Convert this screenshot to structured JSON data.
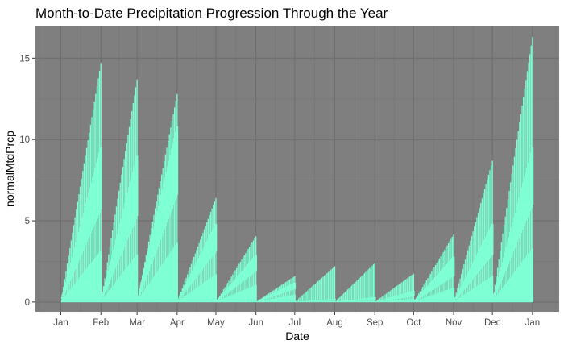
{
  "chart_data": {
    "type": "area",
    "title": "Month-to-Date Precipitation Progression Through the Year",
    "xlabel": "Date",
    "ylabel": "normalMtdPrcp",
    "ylim": [
      -0.6,
      17.0
    ],
    "x_tick_labels": [
      "Jan",
      "Feb",
      "Mar",
      "Apr",
      "May",
      "Jun",
      "Jul",
      "Aug",
      "Sep",
      "Oct",
      "Nov",
      "Dec",
      "Jan"
    ],
    "y_ticks": [
      0,
      5,
      10,
      15
    ],
    "y_tick_labels": [
      "0",
      "5",
      "10",
      "15"
    ],
    "grid": true,
    "panel_background": "#7f7f7f",
    "series_color": "#7fffd4",
    "months": [
      {
        "name": "Jan",
        "days": 31,
        "end_max": 14.7,
        "end_upper_mid": 9.5,
        "end_lower_mid": 5.7,
        "end_min": 0.35
      },
      {
        "name": "Feb",
        "days": 28,
        "end_max": 13.7,
        "end_upper_mid": 9.0,
        "end_lower_mid": 5.3,
        "end_min": 0.35
      },
      {
        "name": "Mar",
        "days": 31,
        "end_max": 12.8,
        "end_upper_mid": 10.8,
        "end_lower_mid": 6.6,
        "end_min": 0.3
      },
      {
        "name": "Apr",
        "days": 30,
        "end_max": 6.4,
        "end_upper_mid": 4.8,
        "end_lower_mid": 3.1,
        "end_min": 0.1
      },
      {
        "name": "May",
        "days": 31,
        "end_max": 4.05,
        "end_upper_mid": 2.9,
        "end_lower_mid": 1.9,
        "end_min": 0.05
      },
      {
        "name": "Jun",
        "days": 30,
        "end_max": 1.6,
        "end_upper_mid": 1.2,
        "end_lower_mid": 0.8,
        "end_min": 0.02
      },
      {
        "name": "Jul",
        "days": 31,
        "end_max": 2.2,
        "end_upper_mid": 0.2,
        "end_lower_mid": 0.1,
        "end_min": 0.0
      },
      {
        "name": "Aug",
        "days": 31,
        "end_max": 2.4,
        "end_upper_mid": 0.3,
        "end_lower_mid": 0.12,
        "end_min": 0.0
      },
      {
        "name": "Sep",
        "days": 30,
        "end_max": 1.75,
        "end_upper_mid": 0.7,
        "end_lower_mid": 0.35,
        "end_min": 0.02
      },
      {
        "name": "Oct",
        "days": 31,
        "end_max": 4.15,
        "end_upper_mid": 2.8,
        "end_lower_mid": 1.6,
        "end_min": 0.05
      },
      {
        "name": "Nov",
        "days": 30,
        "end_max": 8.7,
        "end_upper_mid": 4.8,
        "end_lower_mid": 2.9,
        "end_min": 0.1
      },
      {
        "name": "Dec",
        "days": 31,
        "end_max": 16.3,
        "end_upper_mid": 9.5,
        "end_lower_mid": 6.0,
        "end_min": 0.3
      }
    ]
  }
}
